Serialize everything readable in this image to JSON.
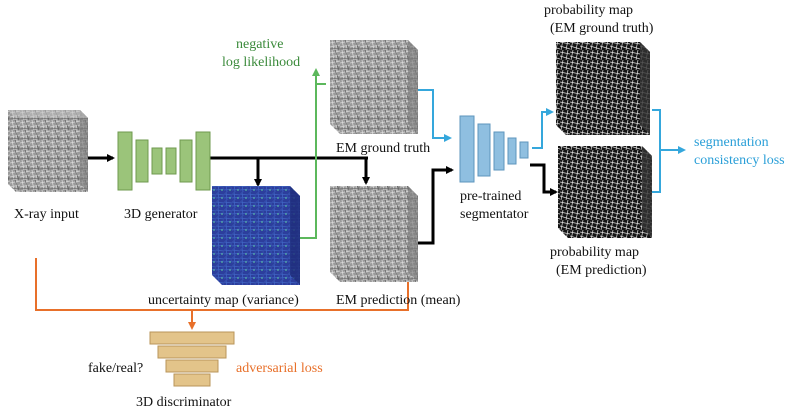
{
  "labels": {
    "xray_input": "X-ray input",
    "generator": "3D generator",
    "uncertainty_map": "uncertainty map (variance)",
    "em_prediction": "EM prediction (mean)",
    "em_ground_truth": "EM ground truth",
    "nll_line1": "negative",
    "nll_line2": "log likelihood",
    "segmentator_line1": "pre-trained",
    "segmentator_line2": "segmentator",
    "prob_gt_line1": "probability map",
    "prob_gt_line2": "(EM ground truth)",
    "prob_pred_line1": "probability map",
    "prob_pred_line2": "(EM prediction)",
    "seg_loss_line1": "segmentation",
    "seg_loss_line2": "consistency loss",
    "fake_real": "fake/real?",
    "adversarial_loss": "adversarial loss",
    "discriminator": "3D discriminator"
  },
  "colors": {
    "black_arrow": "#000000",
    "green_arrow": "#5cb85c",
    "blue_arrow": "#35a7dc",
    "orange_arrow": "#e8702a",
    "generator": "#9bc47a",
    "segmentator": "#8fbfe0",
    "discriminator": "#e3c48a"
  }
}
